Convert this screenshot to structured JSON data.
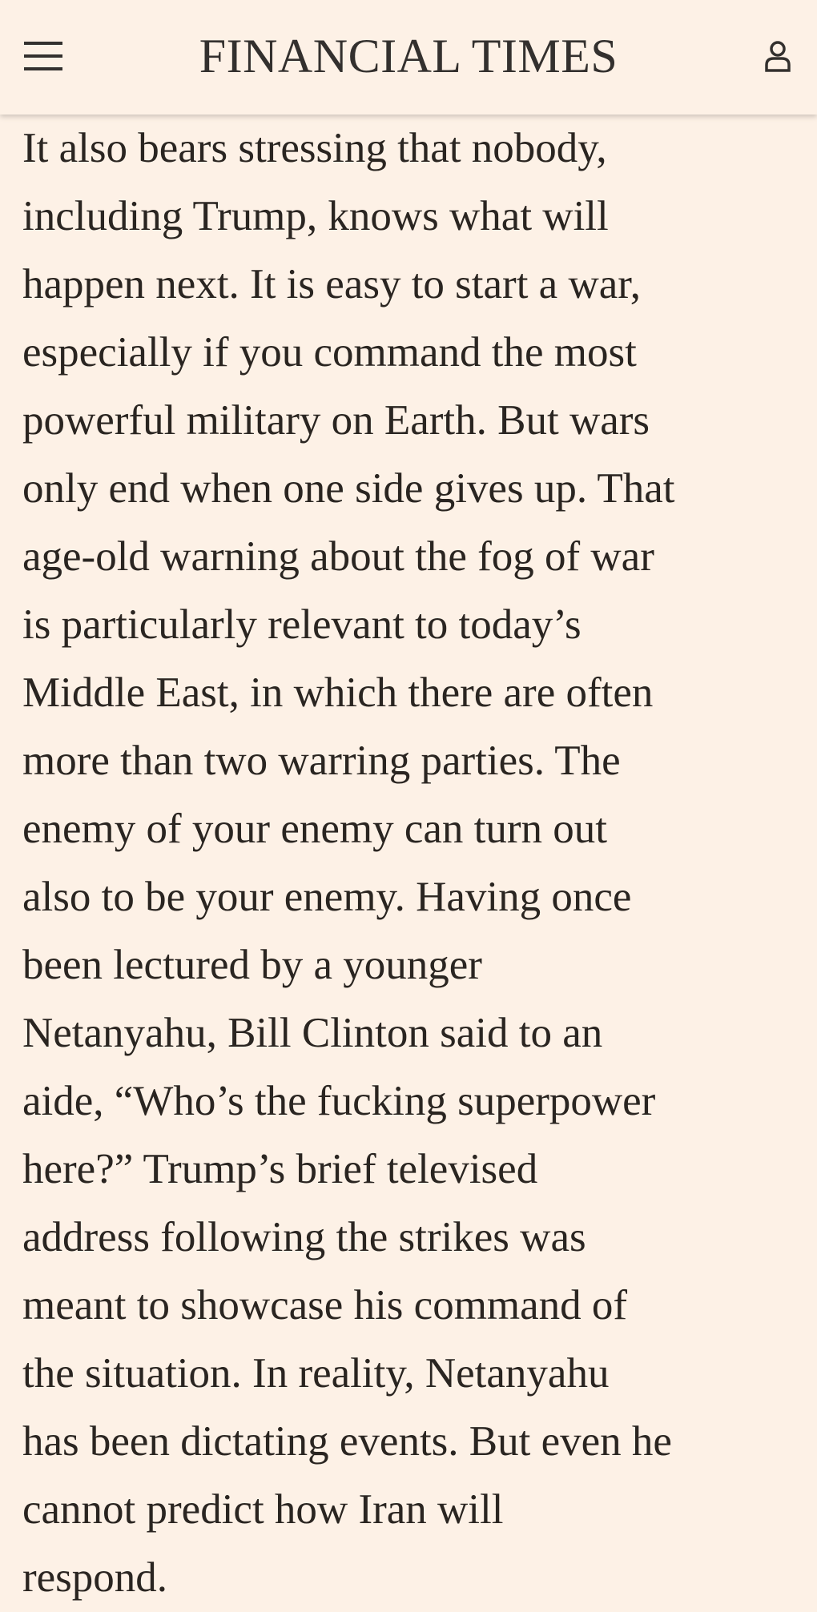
{
  "header": {
    "title": "FINANCIAL TIMES"
  },
  "article": {
    "lines": [
      "It also bears stressing that nobody,",
      "including Trump, knows what will",
      "happen next. It is easy to start a war,",
      "especially if you command the most",
      "powerful military on Earth. But wars",
      "only end when one side gives up. That",
      "age-old warning about the fog of war",
      "is particularly relevant to today’s",
      "Middle East, in which there are often",
      "more than two warring parties. The",
      "enemy of your enemy can turn out",
      "also to be your enemy. Having once",
      "been lectured by a younger",
      "Netanyahu, Bill Clinton said to an",
      "aide, “Who’s the fucking superpower",
      "here?” Trump’s brief televised",
      "address following the strikes was",
      "meant to showcase his command of",
      "the situation. In reality, Netanyahu",
      "has been dictating events. But even he",
      "cannot predict how Iran will",
      "respond."
    ]
  }
}
